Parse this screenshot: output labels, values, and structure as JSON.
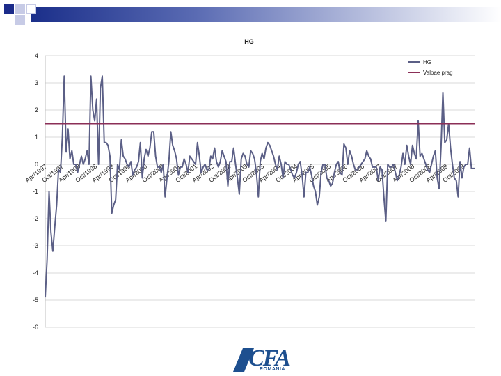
{
  "chart_data": {
    "type": "line",
    "title": "HG",
    "ylim": [
      -6,
      4
    ],
    "yticks": [
      "4",
      "3",
      "2",
      "1",
      "0",
      "-1",
      "-2",
      "-3",
      "-4",
      "-5",
      "-6"
    ],
    "grid": true,
    "legend_position": "top-right",
    "x_tick_labels": [
      "Apr/1997",
      "Oct/1997",
      "Apr/1998",
      "Oct/1998",
      "Apr/1999",
      "Oct/1999",
      "Apr/2000",
      "Oct/2000",
      "Apr/2001",
      "Oct/2001",
      "Apr/2002",
      "Oct/2002",
      "Apr/2003",
      "Oct/2003",
      "Apr/2004",
      "Oct/2004",
      "Apr/2005",
      "Oct/2005",
      "Apr/2006",
      "Oct/2006",
      "Apr/2007",
      "Oct/2007",
      "Apr/2008",
      "Oct/2008",
      "Apr/2009",
      "Oct/2009"
    ],
    "series": [
      {
        "name": "HG",
        "color": "#5b5f86",
        "values": [
          -4.9,
          -3.5,
          -1.0,
          -2.5,
          -3.2,
          -2.3,
          -1.5,
          -0.2,
          -0.3,
          1.0,
          3.25,
          0.45,
          1.3,
          0.2,
          0.5,
          0.0,
          0.0,
          -0.3,
          0.0,
          0.3,
          0.0,
          0.2,
          0.5,
          0.0,
          3.25,
          2.0,
          1.6,
          2.4,
          0.0,
          2.8,
          3.25,
          0.8,
          0.8,
          0.7,
          0.3,
          -1.8,
          -1.5,
          -1.3,
          0.0,
          -0.2,
          0.9,
          0.3,
          0.2,
          0.0,
          -0.1,
          0.1,
          -0.4,
          -0.2,
          -0.1,
          0.1,
          0.8,
          -0.5,
          0.2,
          0.55,
          0.3,
          0.6,
          1.2,
          1.2,
          0.3,
          -0.1,
          -0.1,
          -0.3,
          0.0,
          -1.2,
          -0.5,
          0.1,
          1.2,
          0.7,
          0.5,
          0.2,
          -0.4,
          -0.1,
          -0.1,
          0.2,
          0.0,
          -0.3,
          0.3,
          0.2,
          0.1,
          0.0,
          0.8,
          0.3,
          -0.3,
          -0.1,
          0.0,
          -0.2,
          -0.2,
          0.3,
          0.2,
          0.6,
          0.1,
          -0.1,
          0.1,
          0.5,
          0.3,
          0.1,
          -0.8,
          0.1,
          0.1,
          0.6,
          0.0,
          -0.5,
          -1.1,
          0.2,
          0.4,
          0.3,
          0.0,
          -0.1,
          0.5,
          0.4,
          0.2,
          -0.3,
          -1.2,
          0.1,
          0.4,
          0.2,
          0.6,
          0.8,
          0.7,
          0.5,
          0.3,
          0.0,
          -0.2,
          0.3,
          0.0,
          -0.5,
          0.1,
          0.0,
          0.0,
          -0.2,
          -0.4,
          -0.5,
          -0.3,
          0.0,
          0.1,
          -0.4,
          -1.2,
          -0.3,
          -0.3,
          -0.1,
          -0.4,
          -0.8,
          -1.0,
          -1.5,
          -1.2,
          -0.3,
          0.0,
          0.0,
          -0.5,
          -0.6,
          -0.8,
          -0.7,
          -0.3,
          0.0,
          0.1,
          -0.3,
          -0.4,
          0.75,
          0.6,
          0.0,
          0.5,
          0.3,
          0.0,
          -0.2,
          -0.2,
          -0.1,
          0.0,
          0.1,
          0.2,
          0.5,
          0.3,
          0.2,
          -0.1,
          -0.1,
          -0.1,
          -0.6,
          -0.1,
          -0.2,
          -1.2,
          -2.1,
          0.0,
          -0.1,
          -0.1,
          0.0,
          -0.3,
          -0.6,
          -0.4,
          -0.1,
          0.4,
          0.0,
          0.7,
          0.3,
          0.0,
          0.7,
          0.4,
          0.2,
          1.6,
          0.3,
          0.4,
          0.2,
          0.0,
          -0.2,
          -0.3,
          0.0,
          0.3,
          0.5,
          -0.5,
          -0.9,
          0.6,
          2.65,
          0.8,
          0.9,
          1.5,
          0.6,
          0.0,
          -0.5,
          -0.6,
          -1.2,
          0.1,
          -0.5,
          -0.1,
          0.0,
          0.0,
          0.6,
          -0.15,
          -0.15,
          -0.15
        ]
      },
      {
        "name": "Valoae prag",
        "color": "#8b2f57",
        "values": [
          1.5,
          1.5
        ]
      }
    ]
  },
  "logo": {
    "word": "CFA",
    "sub": "ROMANIA",
    "color": "#1d4f8f"
  }
}
